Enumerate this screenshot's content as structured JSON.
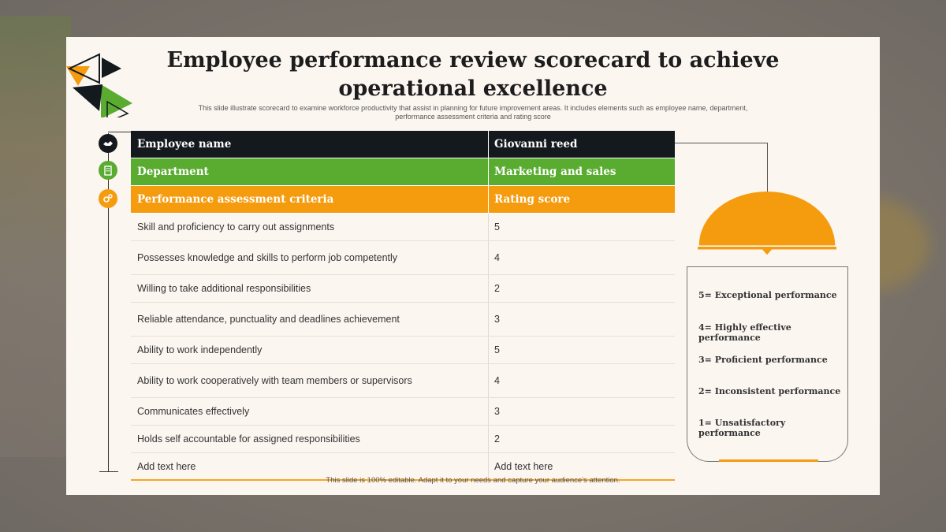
{
  "slide": {
    "title_line1": "Employee performance review scorecard to achieve",
    "title_line2": "operational excellence",
    "subtitle_line1": "This slide illustrate scorecard to examine workforce productivity that assist in planning for future improvement areas. It includes elements such as employee name, department,",
    "subtitle_line2": "performance assessment criteria and rating score",
    "footer": "This slide is 100% editable. Adapt it to your needs and capture your audience’s attention."
  },
  "colors": {
    "dark": "#13191d",
    "green": "#5aac31",
    "orange": "#f59b0e"
  },
  "icons": [
    "handshake-icon",
    "building-icon",
    "gears-icon"
  ],
  "table": {
    "header": [
      {
        "label": "Employee name",
        "value": "Giovanni reed"
      },
      {
        "label": "Department",
        "value": "Marketing and sales"
      },
      {
        "label": "Performance assessment criteria",
        "value": "Rating score"
      }
    ],
    "rows": [
      {
        "criteria": "Skill and proficiency to carry out assignments",
        "score": "5"
      },
      {
        "criteria": "Possesses knowledge and skills to perform job competently",
        "score": "4"
      },
      {
        "criteria": "Willing to take additional responsibilities",
        "score": "2"
      },
      {
        "criteria": "Reliable attendance, punctuality and deadlines achievement",
        "score": "3"
      },
      {
        "criteria": "Ability to work independently",
        "score": "5"
      },
      {
        "criteria": "Ability to work cooperatively with team members or supervisors",
        "score": "4"
      },
      {
        "criteria": "Communicates effectively",
        "score": "3"
      },
      {
        "criteria": "Holds self accountable for assigned responsibilities",
        "score": "2"
      },
      {
        "criteria": "Add text here",
        "score": "Add text here"
      }
    ]
  },
  "legend": [
    "5= Exceptional performance",
    "4= Highly effective performance",
    "3= Proficient performance",
    "2= Inconsistent performance",
    "1= Unsatisfactory performance"
  ]
}
